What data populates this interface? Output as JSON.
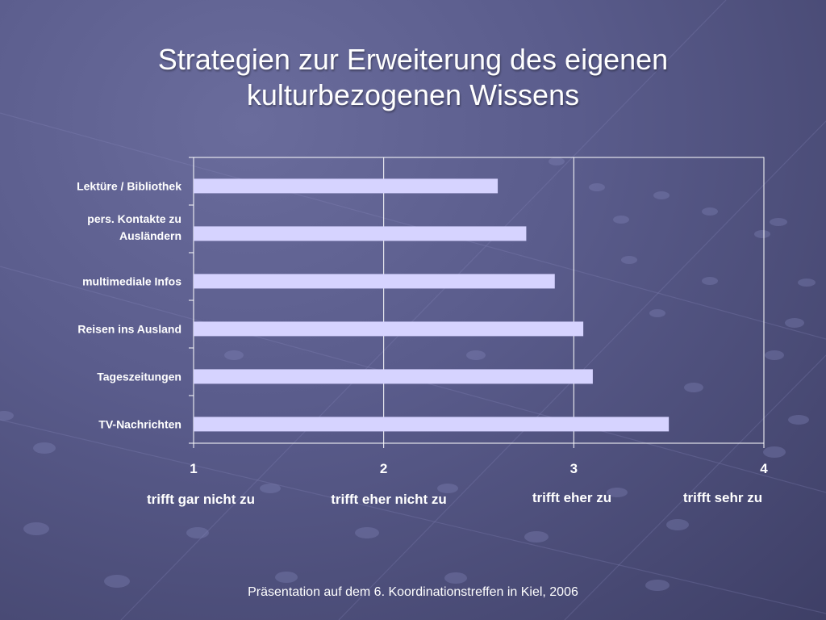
{
  "slide": {
    "title_line1": "Strategien zur Erweiterung des eigenen",
    "title_line2": "kulturbezogenen Wissens",
    "footer": "Präsentation auf dem 6. Koordinationstreffen in Kiel, 2006"
  },
  "scale_labels": [
    "trifft gar nicht zu",
    "trifft eher nicht zu",
    "trifft eher zu",
    "trifft sehr zu"
  ],
  "colors": {
    "bar": "#d6d3ff",
    "axis": "#ffffff",
    "text": "#ffffff"
  },
  "chart_data": {
    "type": "bar",
    "orientation": "horizontal",
    "categories": [
      [
        "Lektüre / Bibliothek"
      ],
      [
        "pers. Kontakte zu",
        "Ausländern"
      ],
      [
        "multimediale Infos"
      ],
      [
        "Reisen ins Ausland"
      ],
      [
        "Tageszeitungen"
      ],
      [
        "TV-Nachrichten"
      ]
    ],
    "values": [
      2.6,
      2.75,
      2.9,
      3.05,
      3.1,
      3.5
    ],
    "xlim": [
      1,
      4
    ],
    "xticks": [
      "1",
      "2",
      "3",
      "4"
    ],
    "grid": "vertical",
    "legend": "none"
  }
}
